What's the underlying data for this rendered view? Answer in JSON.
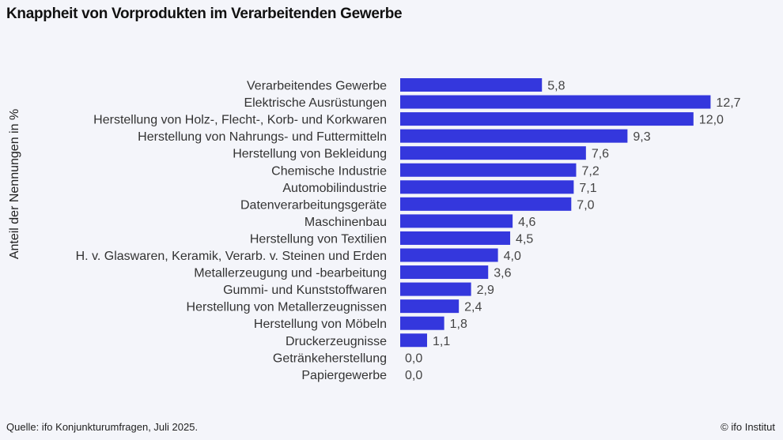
{
  "chart_data": {
    "type": "bar",
    "orientation": "horizontal",
    "title": "Knappheit von Vorprodukten im Verarbeitenden Gewerbe",
    "ylabel": "Anteil der Nennungen in %",
    "xlabel": "",
    "categories": [
      "Verarbeitendes Gewerbe",
      "Elektrische Ausrüstungen",
      "Herstellung von Holz-, Flecht-, Korb- und Korkwaren",
      "Herstellung von Nahrungs- und Futtermitteln",
      "Herstellung von Bekleidung",
      "Chemische Industrie",
      "Automobilindustrie",
      "Datenverarbeitungsgeräte",
      "Maschinenbau",
      "Herstellung von Textilien",
      "H. v. Glaswaren, Keramik, Verarb. v. Steinen und Erden",
      "Metallerzeugung und -bearbeitung",
      "Gummi- und Kunststoffwaren",
      "Herstellung von Metallerzeugnissen",
      "Herstellung von Möbeln",
      "Druckerzeugnisse",
      "Getränkeherstellung",
      "Papiergewerbe"
    ],
    "values": [
      5.8,
      12.7,
      12.0,
      9.3,
      7.6,
      7.2,
      7.1,
      7.0,
      4.6,
      4.5,
      4.0,
      3.6,
      2.9,
      2.4,
      1.8,
      1.1,
      0.0,
      0.0
    ],
    "value_labels": [
      "5,8",
      "12,7",
      "12,0",
      "9,3",
      "7,6",
      "7,2",
      "7,1",
      "7,0",
      "4,6",
      "4,5",
      "4,0",
      "3,6",
      "2,9",
      "2,4",
      "1,8",
      "1,1",
      "0,0",
      "0,0"
    ],
    "bar_color": "#3437dd",
    "grid": false,
    "legend": "none"
  },
  "footer": {
    "source": "Quelle: ifo Konjunkturumfragen, Juli 2025.",
    "credit": "© ifo Institut"
  }
}
